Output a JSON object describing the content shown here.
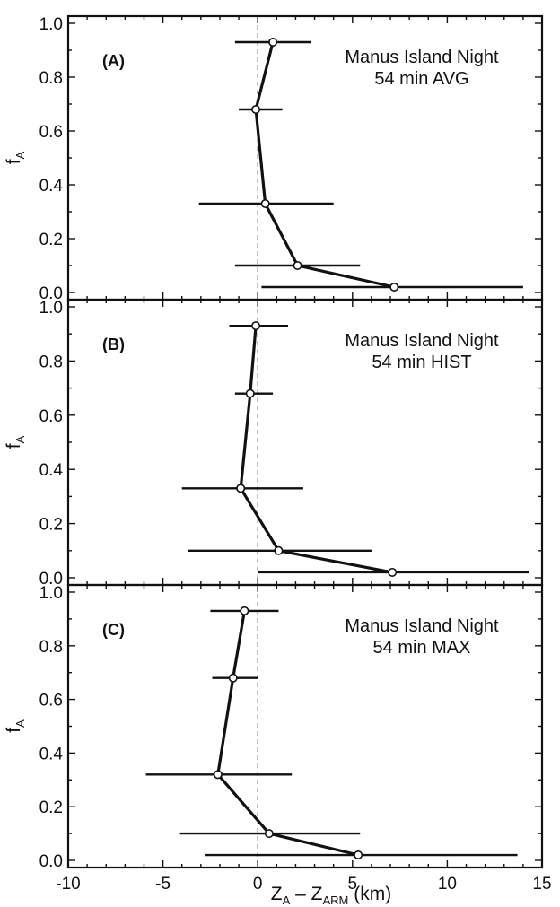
{
  "chart_data": {
    "type": "line",
    "xlabel": "Z",
    "xlabel_sub": "A",
    "xlabel_dash": " – Z",
    "xlabel_sub2": "ARM",
    "xlabel_unit": " (km)",
    "ylabel": "f",
    "ylabel_sub": "A",
    "xlim": [
      -10,
      15
    ],
    "ylim": [
      0,
      1
    ],
    "x_ticks": [
      "-10",
      "-5",
      "0",
      "5",
      "10",
      "15"
    ],
    "x_tick_values": [
      -10,
      -5,
      0,
      5,
      10,
      15
    ],
    "y_ticks": [
      "0.0",
      "0.2",
      "0.4",
      "0.6",
      "0.8",
      "1.0"
    ],
    "y_tick_values": [
      0,
      0.2,
      0.4,
      0.6,
      0.8,
      1.0
    ],
    "reference_line_x": 0,
    "panels": [
      {
        "letter": "(A)",
        "note_line1": "Manus Island Night",
        "note_line2": "54 min AVG",
        "points": [
          {
            "f": 0.93,
            "x": 0.8,
            "lo": -1.2,
            "hi": 2.8
          },
          {
            "f": 0.68,
            "x": -0.1,
            "lo": -1.0,
            "hi": 1.3
          },
          {
            "f": 0.33,
            "x": 0.4,
            "lo": -3.1,
            "hi": 4.0
          },
          {
            "f": 0.1,
            "x": 2.1,
            "lo": -1.2,
            "hi": 5.4
          },
          {
            "f": 0.02,
            "x": 7.2,
            "lo": 0.2,
            "hi": 14.0
          }
        ]
      },
      {
        "letter": "(B)",
        "note_line1": "Manus Island Night",
        "note_line2": "54 min HIST",
        "points": [
          {
            "f": 0.93,
            "x": -0.1,
            "lo": -1.5,
            "hi": 1.6
          },
          {
            "f": 0.68,
            "x": -0.4,
            "lo": -1.2,
            "hi": 0.8
          },
          {
            "f": 0.33,
            "x": -0.9,
            "lo": -4.0,
            "hi": 2.4
          },
          {
            "f": 0.1,
            "x": 1.1,
            "lo": -3.7,
            "hi": 6.0
          },
          {
            "f": 0.02,
            "x": 7.1,
            "lo": 0.0,
            "hi": 14.3
          }
        ]
      },
      {
        "letter": "(C)",
        "note_line1": "Manus Island Night",
        "note_line2": "54 min MAX",
        "points": [
          {
            "f": 0.93,
            "x": -0.7,
            "lo": -2.5,
            "hi": 1.1
          },
          {
            "f": 0.68,
            "x": -1.3,
            "lo": -2.4,
            "hi": 0.0
          },
          {
            "f": 0.32,
            "x": -2.1,
            "lo": -5.9,
            "hi": 1.8
          },
          {
            "f": 0.1,
            "x": 0.6,
            "lo": -4.1,
            "hi": 5.4
          },
          {
            "f": 0.02,
            "x": 5.3,
            "lo": -2.8,
            "hi": 13.7
          }
        ]
      }
    ]
  }
}
